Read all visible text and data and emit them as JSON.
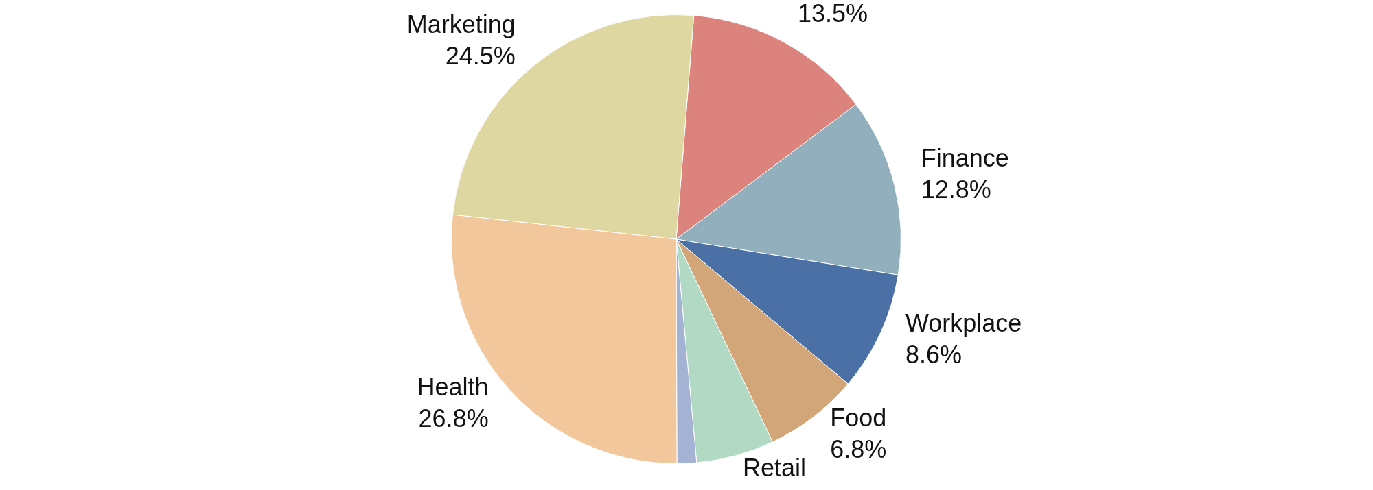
{
  "chart_data": {
    "type": "pie",
    "categories": [
      null,
      "Finance",
      "Workplace",
      "Food",
      "Retail",
      null,
      "Health",
      "Marketing"
    ],
    "values": [
      13.5,
      12.8,
      8.6,
      6.8,
      5.6,
      1.4,
      26.8,
      24.5
    ],
    "colors": [
      "#dd837e",
      "#91afbc",
      "#4a70a5",
      "#d2a679",
      "#b2d9c4",
      "#a4b3d3",
      "#f2c79b",
      "#dfd7a1"
    ],
    "value_labels": [
      "13.5%",
      "12.8%",
      "8.6%",
      "6.8%",
      null,
      null,
      "26.8%",
      "24.5%"
    ]
  }
}
